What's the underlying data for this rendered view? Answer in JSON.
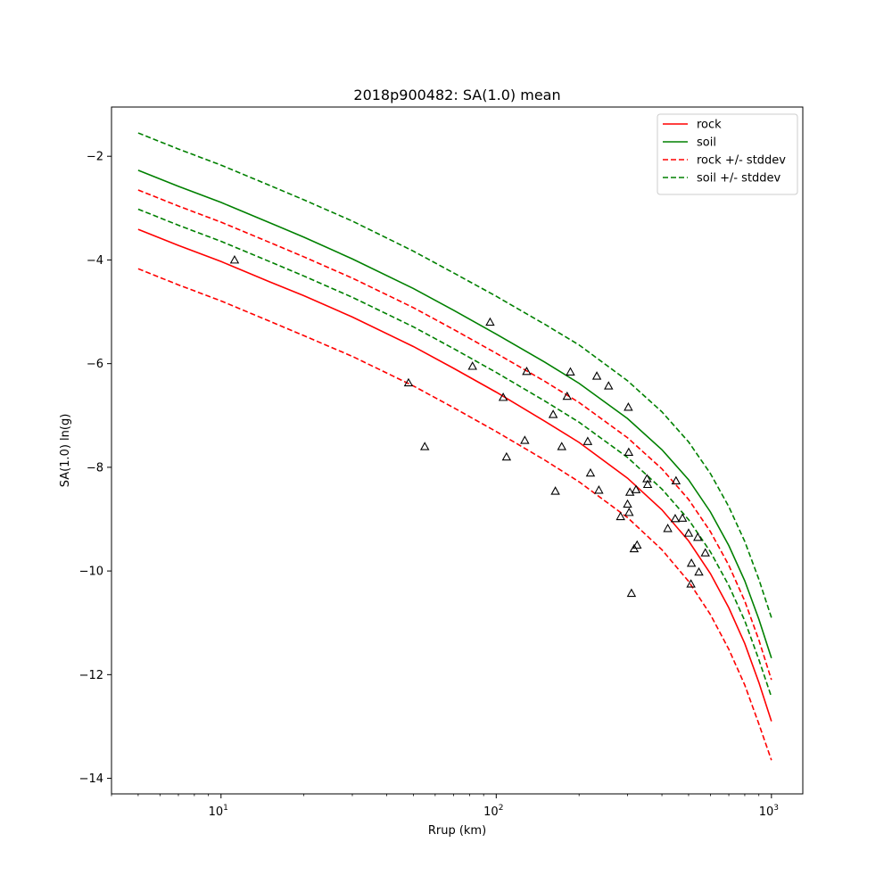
{
  "chart_data": {
    "type": "line",
    "title": "2018p900482: SA(1.0) mean",
    "xlabel": "Rrup (km)",
    "ylabel": "SA(1.0) ln(g)",
    "xscale": "log",
    "xlim": [
      4,
      1300
    ],
    "ylim": [
      -14.3,
      -1.05
    ],
    "xticks": [
      10,
      100,
      1000
    ],
    "xtick_labels": [
      {
        "base": "10",
        "exp": "1"
      },
      {
        "base": "10",
        "exp": "2"
      },
      {
        "base": "10",
        "exp": "3"
      }
    ],
    "yticks": [
      -2,
      -4,
      -6,
      -8,
      -10,
      -12,
      -14
    ],
    "ytick_labels": [
      "−2",
      "−4",
      "−6",
      "−8",
      "−10",
      "−12",
      "−14"
    ],
    "grid": false,
    "legend_position": "top-right",
    "x": [
      5,
      7,
      10,
      15,
      20,
      30,
      50,
      70,
      100,
      150,
      200,
      300,
      400,
      500,
      600,
      700,
      800,
      900,
      1000
    ],
    "series": [
      {
        "name": "rock",
        "color": "#ff0000",
        "dash": false,
        "values": [
          -3.41,
          -3.72,
          -4.03,
          -4.42,
          -4.69,
          -5.1,
          -5.67,
          -6.09,
          -6.55,
          -7.11,
          -7.52,
          -8.21,
          -8.82,
          -9.42,
          -10.05,
          -10.71,
          -11.4,
          -12.15,
          -12.9
        ]
      },
      {
        "name": "soil",
        "color": "#008000",
        "dash": false,
        "values": [
          -2.27,
          -2.58,
          -2.89,
          -3.28,
          -3.56,
          -3.98,
          -4.55,
          -4.97,
          -5.43,
          -5.97,
          -6.38,
          -7.06,
          -7.66,
          -8.24,
          -8.86,
          -9.51,
          -10.19,
          -10.93,
          -11.68
        ]
      },
      {
        "name": "rock +/- stddev",
        "color": "#ff0000",
        "dash": true,
        "values": [
          -2.65,
          -2.96,
          -3.27,
          -3.66,
          -3.94,
          -4.35,
          -4.92,
          -5.34,
          -5.8,
          -6.34,
          -6.75,
          -7.43,
          -8.03,
          -8.62,
          -9.24,
          -9.89,
          -10.58,
          -11.33,
          -12.1
        ]
      },
      {
        "name": "rock +/- stddev",
        "color": "#ff0000",
        "dash": true,
        "legend": false,
        "values": [
          -4.17,
          -4.48,
          -4.79,
          -5.18,
          -5.46,
          -5.86,
          -6.43,
          -6.85,
          -7.31,
          -7.86,
          -8.28,
          -8.97,
          -9.59,
          -10.2,
          -10.84,
          -11.51,
          -12.2,
          -12.95,
          -13.65
        ]
      },
      {
        "name": "soil +/- stddev",
        "color": "#008000",
        "dash": true,
        "values": [
          -1.55,
          -1.86,
          -2.17,
          -2.56,
          -2.84,
          -3.25,
          -3.83,
          -4.25,
          -4.7,
          -5.24,
          -5.64,
          -6.33,
          -6.93,
          -7.51,
          -8.12,
          -8.76,
          -9.43,
          -10.16,
          -10.9
        ]
      },
      {
        "name": "soil +/- stddev",
        "color": "#008000",
        "dash": true,
        "legend": false,
        "values": [
          -3.02,
          -3.33,
          -3.64,
          -4.03,
          -4.31,
          -4.72,
          -5.29,
          -5.71,
          -6.17,
          -6.72,
          -7.13,
          -7.81,
          -8.42,
          -9.01,
          -9.63,
          -10.28,
          -10.96,
          -11.71,
          -12.43
        ]
      }
    ],
    "observations": {
      "marker": "triangle",
      "points": [
        [
          11.2,
          -4.0
        ],
        [
          48,
          -6.37
        ],
        [
          55,
          -7.6
        ],
        [
          82,
          -6.05
        ],
        [
          95,
          -5.2
        ],
        [
          106,
          -6.65
        ],
        [
          109,
          -7.8
        ],
        [
          127,
          -7.48
        ],
        [
          129,
          -6.15
        ],
        [
          161,
          -6.98
        ],
        [
          164,
          -8.46
        ],
        [
          173,
          -7.6
        ],
        [
          181,
          -6.63
        ],
        [
          186,
          -6.16
        ],
        [
          215,
          -7.5
        ],
        [
          220,
          -8.11
        ],
        [
          232,
          -6.24
        ],
        [
          236,
          -8.44
        ],
        [
          256,
          -6.43
        ],
        [
          283,
          -8.95
        ],
        [
          300,
          -8.71
        ],
        [
          302,
          -6.84
        ],
        [
          303,
          -7.71
        ],
        [
          304,
          -8.87
        ],
        [
          306,
          -8.48
        ],
        [
          310,
          -10.43
        ],
        [
          317,
          -9.57
        ],
        [
          322,
          -8.43
        ],
        [
          325,
          -9.5
        ],
        [
          353,
          -8.22
        ],
        [
          355,
          -8.33
        ],
        [
          420,
          -9.18
        ],
        [
          447,
          -8.99
        ],
        [
          450,
          -8.26
        ],
        [
          475,
          -8.98
        ],
        [
          500,
          -9.27
        ],
        [
          510,
          -10.25
        ],
        [
          512,
          -9.85
        ],
        [
          540,
          -9.35
        ],
        [
          545,
          -10.02
        ],
        [
          575,
          -9.65
        ]
      ]
    }
  }
}
